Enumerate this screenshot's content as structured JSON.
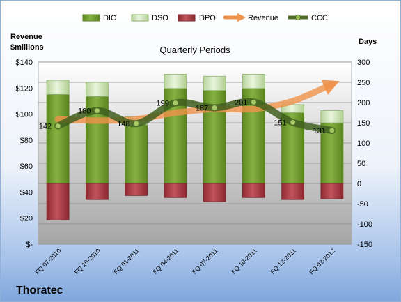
{
  "company": "Thoratec",
  "chart_data": {
    "type": "bar",
    "subtitle": "Quarterly Periods",
    "left_axis_title": [
      "Revenue",
      "$millions"
    ],
    "right_axis_title": "Days",
    "categories": [
      "FQ 07-2010",
      "FQ 10-2010",
      "FQ 01-2011",
      "FQ 04-2011",
      "FQ 07-2011",
      "FQ 10-2011",
      "FQ 12-2011",
      "FQ 03-2012"
    ],
    "left_ticks": [
      "$140",
      "$120",
      "$100",
      "$80",
      "$60",
      "$40",
      "$20",
      "$-"
    ],
    "left_ylim": [
      0,
      140
    ],
    "right_ticks": [
      "300",
      "250",
      "200",
      "150",
      "100",
      "50",
      "0",
      "-50",
      "-100",
      "-150"
    ],
    "right_ylim": [
      -150,
      300
    ],
    "legend_position": "top",
    "series": [
      {
        "name": "DIO",
        "axis": "days",
        "color": "#7fa83a",
        "values": [
          220,
          215,
          145,
          235,
          230,
          235,
          175,
          150
        ]
      },
      {
        "name": "DSO",
        "axis": "days",
        "color": "#d9ead0",
        "values": [
          35,
          35,
          20,
          35,
          35,
          35,
          20,
          30
        ]
      },
      {
        "name": "DPO",
        "axis": "days",
        "color": "#b5474f",
        "values": [
          -90,
          -40,
          -30,
          -35,
          -45,
          -35,
          -40,
          -38
        ]
      },
      {
        "name": "Revenue",
        "axis": "revenue",
        "color": "#f2954a",
        "values": [
          96,
          95,
          96,
          101,
          104,
          104,
          110,
          123
        ]
      },
      {
        "name": "CCC",
        "axis": "days",
        "color": "#4f6f28",
        "values": [
          142,
          180,
          148,
          199,
          187,
          201,
          151,
          131
        ],
        "labels": [
          "142",
          "180",
          "148",
          "199",
          "187",
          "201",
          "151",
          "131"
        ]
      }
    ]
  }
}
